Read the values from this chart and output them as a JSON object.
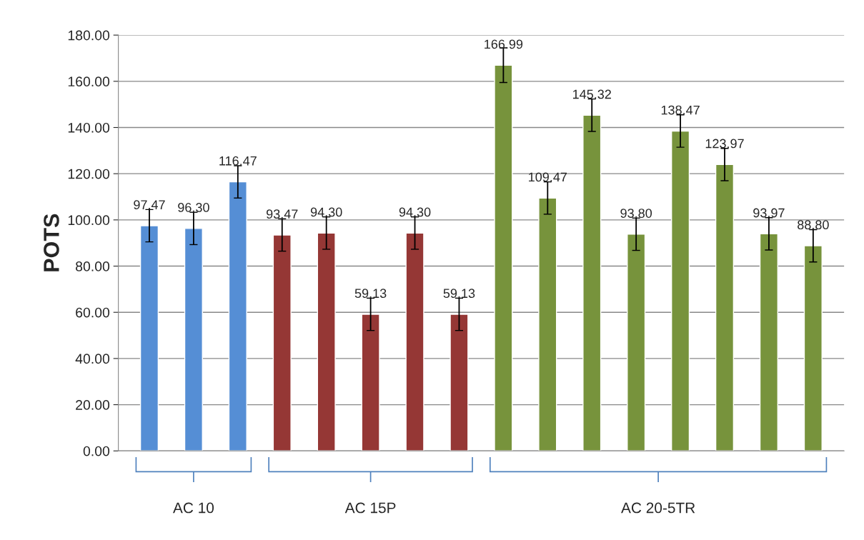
{
  "chart_data": {
    "type": "bar",
    "ylabel": "POTS",
    "categories": [
      null,
      null,
      null,
      null,
      null,
      null,
      null,
      null,
      null,
      null,
      null,
      null,
      null,
      null,
      null,
      null
    ],
    "values": [
      97.47,
      96.3,
      116.47,
      93.47,
      94.3,
      59.13,
      94.3,
      59.13,
      166.99,
      109.47,
      145.32,
      93.8,
      138.47,
      123.97,
      93.97,
      88.8
    ],
    "value_labels": [
      "97.47",
      "96.30",
      "116.47",
      "93.47",
      "94.30",
      "59.13",
      "94.30",
      "59.13",
      "166.99",
      "109.47",
      "145.32",
      "93.80",
      "138.47",
      "123.97",
      "93.97",
      "88.80"
    ],
    "errors": [
      7,
      7,
      7,
      7,
      7,
      7,
      7,
      7,
      7.5,
      7,
      7,
      7,
      7,
      7,
      7,
      7
    ],
    "colors": [
      "#558ed5",
      "#558ed5",
      "#558ed5",
      "#953735",
      "#953735",
      "#953735",
      "#953735",
      "#953735",
      "#77933c",
      "#77933c",
      "#77933c",
      "#77933c",
      "#77933c",
      "#77933c",
      "#77933c",
      "#77933c"
    ],
    "ylim": [
      0,
      180
    ],
    "yticks": [
      {
        "value": 0,
        "label": "0.00"
      },
      {
        "value": 20,
        "label": "20.00"
      },
      {
        "value": 40,
        "label": "40.00"
      },
      {
        "value": 60,
        "label": "60.00"
      },
      {
        "value": 80,
        "label": "80.00"
      },
      {
        "value": 100,
        "label": "100.00"
      },
      {
        "value": 120,
        "label": "120.00"
      },
      {
        "value": 140,
        "label": "140.00"
      },
      {
        "value": 160,
        "label": "160.00"
      },
      {
        "value": 180,
        "label": "180.00"
      }
    ],
    "grid": "y",
    "tick_labels": "y",
    "annotations": [
      "AC 10",
      "AC 15P",
      "AC 20-5TR"
    ]
  }
}
